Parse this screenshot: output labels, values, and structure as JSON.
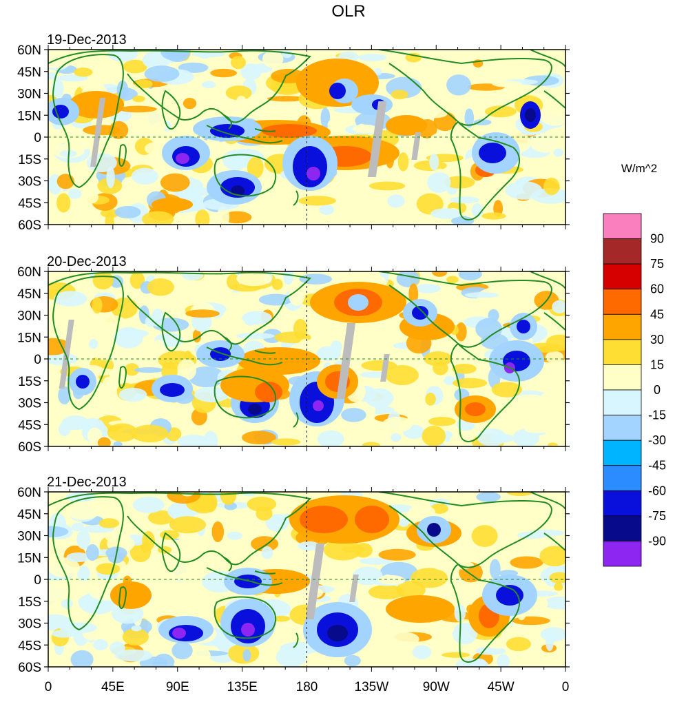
{
  "title": "OLR",
  "units_label": "W/m^2",
  "panels": [
    {
      "date": "19-Dec-2013"
    },
    {
      "date": "20-Dec-2013"
    },
    {
      "date": "21-Dec-2013"
    }
  ],
  "lat_labels": [
    "60N",
    "45N",
    "30N",
    "15N",
    "0",
    "15S",
    "30S",
    "45S",
    "60S"
  ],
  "lon_labels": [
    "0",
    "45E",
    "90E",
    "135E",
    "180",
    "135W",
    "90W",
    "45W",
    "0"
  ],
  "colorbar": {
    "tick_labels": [
      "90",
      "75",
      "60",
      "45",
      "30",
      "15",
      "0",
      "-15",
      "-30",
      "-45",
      "-60",
      "-75",
      "-90"
    ],
    "colors": [
      "#f97fbf",
      "#a42828",
      "#d60000",
      "#ff6a00",
      "#ffa500",
      "#ffde33",
      "#ffffc8",
      "#d8f6ff",
      "#a3d4ff",
      "#00b4ff",
      "#2a8cff",
      "#0a10dc",
      "#080a8c",
      "#8c26f0"
    ]
  },
  "map_colors": {
    "land_outline": "#228b22",
    "missing": "#bcbcbc",
    "zero_line": "#228b22"
  }
}
